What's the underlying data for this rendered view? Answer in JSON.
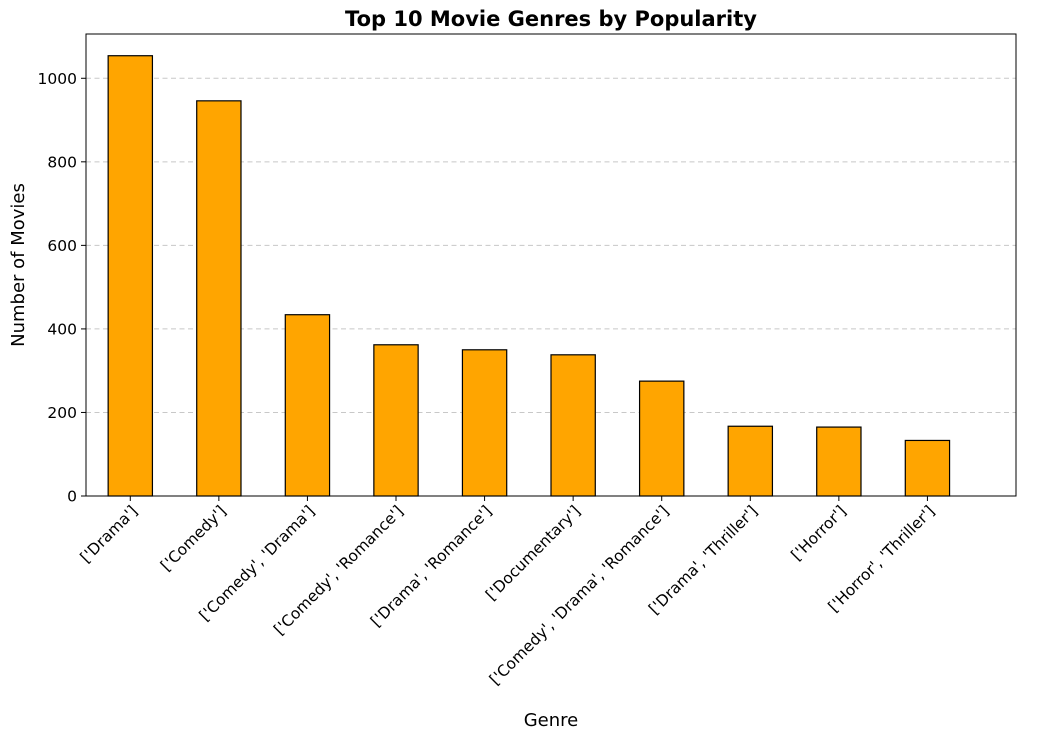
{
  "chart_data": {
    "type": "bar",
    "title": "Top 10 Movie Genres by Popularity",
    "xlabel": "Genre",
    "ylabel": "Number of Movies",
    "categories": [
      "['Drama']",
      "['Comedy']",
      "['Comedy', 'Drama']",
      "['Comedy', 'Romance']",
      "['Drama', 'Romance']",
      "['Documentary']",
      "['Comedy', 'Drama', 'Romance']",
      "['Drama', 'Thriller']",
      "['Horror']",
      "['Horror', 'Thriller']"
    ],
    "values": [
      1054,
      946,
      434,
      362,
      350,
      338,
      275,
      167,
      165,
      133
    ],
    "ylim": [
      0,
      1106
    ],
    "yticks": [
      0,
      200,
      400,
      600,
      800,
      1000
    ],
    "grid": "y-dashed",
    "bar_color": "#FFA500",
    "edge_color": "#000000"
  }
}
